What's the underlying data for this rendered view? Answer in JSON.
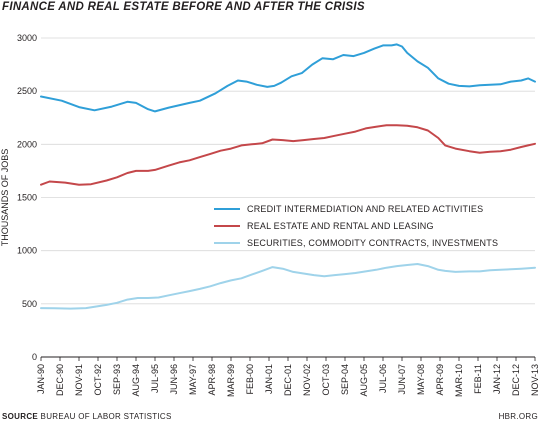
{
  "chart_data": {
    "type": "line",
    "title": "FINANCE AND REAL ESTATE BEFORE AND AFTER THE CRISIS",
    "ylabel": "THOUSANDS OF JOBS",
    "xlabel": "",
    "ylim": [
      0,
      3000
    ],
    "yticks": [
      0,
      500,
      1000,
      1500,
      2000,
      2500,
      3000
    ],
    "xlim": [
      "Jan-90",
      "Nov-13"
    ],
    "x_tick_labels": [
      "JAN-90",
      "DEC-90",
      "NOV-91",
      "OCT-92",
      "SEP-93",
      "AUG-94",
      "JUL-95",
      "JUN-96",
      "MAY-97",
      "APR-98",
      "MAR-99",
      "FEB-00",
      "JAN-01",
      "DEC-01",
      "NOV-02",
      "OCT-03",
      "SEP-04",
      "AUG-05",
      "JUL-06",
      "JUN-07",
      "MAY-08",
      "APR-09",
      "MAR-10",
      "FEB-11",
      "JAN-12",
      "DEC-12",
      "NOV-13"
    ],
    "grid": "horizontal",
    "legend_position": "center-right",
    "series": [
      {
        "name": "CREDIT INTERMEDIATION AND RELATED ACTIVITIES",
        "color": "#2f9fd8",
        "points": [
          [
            "1990-01",
            2450
          ],
          [
            "1991-01",
            2410
          ],
          [
            "1991-11",
            2350
          ],
          [
            "1992-08",
            2320
          ],
          [
            "1993-06",
            2355
          ],
          [
            "1994-03",
            2400
          ],
          [
            "1994-08",
            2390
          ],
          [
            "1995-03",
            2330
          ],
          [
            "1995-07",
            2310
          ],
          [
            "1996-03",
            2345
          ],
          [
            "1997-03",
            2390
          ],
          [
            "1997-09",
            2410
          ],
          [
            "1998-06",
            2480
          ],
          [
            "1999-01",
            2550
          ],
          [
            "1999-07",
            2600
          ],
          [
            "1999-12",
            2590
          ],
          [
            "2000-06",
            2560
          ],
          [
            "2000-12",
            2540
          ],
          [
            "2001-04",
            2550
          ],
          [
            "2001-08",
            2580
          ],
          [
            "2002-02",
            2640
          ],
          [
            "2002-08",
            2670
          ],
          [
            "2003-02",
            2750
          ],
          [
            "2003-08",
            2810
          ],
          [
            "2004-02",
            2800
          ],
          [
            "2004-08",
            2840
          ],
          [
            "2005-02",
            2830
          ],
          [
            "2005-08",
            2860
          ],
          [
            "2006-02",
            2900
          ],
          [
            "2006-07",
            2930
          ],
          [
            "2006-12",
            2930
          ],
          [
            "2007-03",
            2940
          ],
          [
            "2007-06",
            2920
          ],
          [
            "2007-09",
            2860
          ],
          [
            "2008-03",
            2780
          ],
          [
            "2008-09",
            2720
          ],
          [
            "2009-03",
            2620
          ],
          [
            "2009-09",
            2570
          ],
          [
            "2010-03",
            2550
          ],
          [
            "2010-09",
            2545
          ],
          [
            "2011-03",
            2555
          ],
          [
            "2011-09",
            2560
          ],
          [
            "2012-03",
            2565
          ],
          [
            "2012-09",
            2590
          ],
          [
            "2013-03",
            2600
          ],
          [
            "2013-07",
            2620
          ],
          [
            "2013-11",
            2590
          ]
        ]
      },
      {
        "name": "REAL ESTATE AND RENTAL AND LEASING",
        "color": "#c4474a",
        "points": [
          [
            "1990-01",
            1620
          ],
          [
            "1990-06",
            1650
          ],
          [
            "1991-03",
            1640
          ],
          [
            "1991-11",
            1620
          ],
          [
            "1992-06",
            1625
          ],
          [
            "1993-03",
            1660
          ],
          [
            "1993-09",
            1690
          ],
          [
            "1994-03",
            1730
          ],
          [
            "1994-08",
            1750
          ],
          [
            "1995-03",
            1750
          ],
          [
            "1995-07",
            1760
          ],
          [
            "1996-03",
            1800
          ],
          [
            "1996-09",
            1830
          ],
          [
            "1997-03",
            1850
          ],
          [
            "1997-09",
            1880
          ],
          [
            "1998-03",
            1910
          ],
          [
            "1998-09",
            1940
          ],
          [
            "1999-03",
            1960
          ],
          [
            "1999-09",
            1990
          ],
          [
            "2000-03",
            2000
          ],
          [
            "2000-09",
            2010
          ],
          [
            "2001-03",
            2045
          ],
          [
            "2001-09",
            2040
          ],
          [
            "2002-03",
            2030
          ],
          [
            "2002-09",
            2040
          ],
          [
            "2003-03",
            2050
          ],
          [
            "2003-09",
            2060
          ],
          [
            "2004-03",
            2080
          ],
          [
            "2004-09",
            2100
          ],
          [
            "2005-03",
            2120
          ],
          [
            "2005-09",
            2150
          ],
          [
            "2006-03",
            2165
          ],
          [
            "2006-09",
            2180
          ],
          [
            "2007-03",
            2180
          ],
          [
            "2007-09",
            2175
          ],
          [
            "2008-03",
            2160
          ],
          [
            "2008-09",
            2130
          ],
          [
            "2009-03",
            2060
          ],
          [
            "2009-07",
            1990
          ],
          [
            "2010-01",
            1960
          ],
          [
            "2010-09",
            1935
          ],
          [
            "2011-03",
            1920
          ],
          [
            "2011-09",
            1930
          ],
          [
            "2012-03",
            1935
          ],
          [
            "2012-09",
            1950
          ],
          [
            "2013-03",
            1975
          ],
          [
            "2013-07",
            1990
          ],
          [
            "2013-11",
            2005
          ]
        ]
      },
      {
        "name": "SECURITIES, COMMODITY CONTRACTS, INVESTMENTS",
        "color": "#9fd3ea",
        "points": [
          [
            "1990-01",
            460
          ],
          [
            "1990-09",
            458
          ],
          [
            "1991-06",
            455
          ],
          [
            "1992-03",
            460
          ],
          [
            "1992-09",
            475
          ],
          [
            "1993-03",
            490
          ],
          [
            "1993-09",
            510
          ],
          [
            "1994-03",
            540
          ],
          [
            "1994-09",
            555
          ],
          [
            "1995-03",
            555
          ],
          [
            "1995-09",
            560
          ],
          [
            "1996-03",
            580
          ],
          [
            "1996-09",
            600
          ],
          [
            "1997-03",
            620
          ],
          [
            "1997-09",
            640
          ],
          [
            "1998-03",
            665
          ],
          [
            "1998-09",
            695
          ],
          [
            "1999-03",
            720
          ],
          [
            "1999-09",
            740
          ],
          [
            "2000-03",
            775
          ],
          [
            "2000-09",
            810
          ],
          [
            "2001-03",
            845
          ],
          [
            "2001-09",
            830
          ],
          [
            "2002-03",
            800
          ],
          [
            "2002-09",
            785
          ],
          [
            "2003-03",
            770
          ],
          [
            "2003-09",
            760
          ],
          [
            "2004-03",
            770
          ],
          [
            "2004-09",
            780
          ],
          [
            "2005-03",
            790
          ],
          [
            "2005-09",
            805
          ],
          [
            "2006-03",
            820
          ],
          [
            "2006-09",
            840
          ],
          [
            "2007-03",
            855
          ],
          [
            "2007-09",
            865
          ],
          [
            "2008-03",
            875
          ],
          [
            "2008-09",
            855
          ],
          [
            "2009-03",
            820
          ],
          [
            "2009-07",
            810
          ],
          [
            "2010-01",
            800
          ],
          [
            "2010-09",
            805
          ],
          [
            "2011-03",
            805
          ],
          [
            "2011-09",
            815
          ],
          [
            "2012-03",
            820
          ],
          [
            "2012-09",
            825
          ],
          [
            "2013-03",
            830
          ],
          [
            "2013-11",
            840
          ]
        ]
      }
    ]
  },
  "footer": {
    "source_label": "SOURCE",
    "source_text": " BUREAU OF LABOR STATISTICS",
    "credit": "HBR.ORG"
  }
}
